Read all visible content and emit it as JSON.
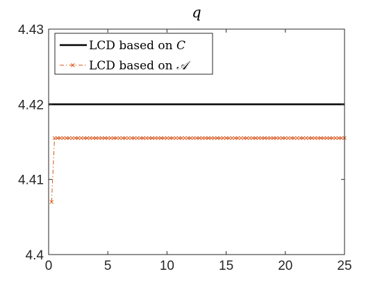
{
  "chart_data": {
    "type": "line",
    "title": "q",
    "xlabel": "",
    "ylabel": "",
    "xlim": [
      0,
      25
    ],
    "ylim": [
      4.4,
      4.43
    ],
    "xticks": [
      0,
      5,
      10,
      15,
      20,
      25
    ],
    "yticks": [
      4.4,
      4.41,
      4.42,
      4.43
    ],
    "xtick_labels": [
      "0",
      "5",
      "10",
      "15",
      "20",
      "25"
    ],
    "ytick_labels": [
      "4.4",
      "4.41",
      "4.42",
      "4.43"
    ],
    "grid": false,
    "legend_position": "top-left",
    "series": [
      {
        "name": "LCD based on C",
        "legend_prefix": "LCD based on ",
        "legend_symbol": "C",
        "color": "#000000",
        "style": "solid",
        "marker": "none",
        "x": [
          0,
          25
        ],
        "y": [
          4.42,
          4.42
        ]
      },
      {
        "name": "LCD based on 𝒜",
        "legend_prefix": "LCD based on ",
        "legend_symbol": "𝒜",
        "color": "#D95319",
        "style": "dashdot",
        "marker": "x",
        "x_start": 0.25,
        "x_end": 25,
        "x_step": 0.25,
        "y_first": 4.407,
        "y_rest": 4.4155
      }
    ]
  }
}
